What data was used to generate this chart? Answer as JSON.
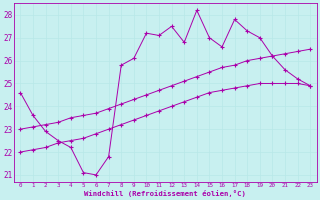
{
  "bg_color": "#c8f0f0",
  "line_color": "#aa00aa",
  "grid_color": "#b8e8e8",
  "xlabel": "Windchill (Refroidissement éolien,°C)",
  "xlabel_color": "#aa00aa",
  "xlim": [
    -0.5,
    23.5
  ],
  "ylim": [
    20.7,
    28.5
  ],
  "yticks": [
    21,
    22,
    23,
    24,
    25,
    26,
    27,
    28
  ],
  "xticks": [
    0,
    1,
    2,
    3,
    4,
    5,
    6,
    7,
    8,
    9,
    10,
    11,
    12,
    13,
    14,
    15,
    16,
    17,
    18,
    19,
    20,
    21,
    22,
    23
  ],
  "line1_x": [
    0,
    1,
    2,
    3,
    4,
    5,
    6,
    7,
    8,
    9,
    10,
    11,
    12,
    13,
    14,
    15,
    16,
    17,
    18,
    19,
    20,
    21,
    22,
    23
  ],
  "line1_y": [
    24.6,
    23.6,
    22.9,
    22.5,
    22.2,
    21.1,
    21.0,
    21.8,
    25.8,
    26.1,
    27.2,
    27.1,
    27.5,
    26.8,
    28.2,
    27.0,
    26.6,
    27.8,
    27.3,
    27.0,
    26.2,
    25.6,
    25.2,
    24.9
  ],
  "line2_x": [
    0,
    1,
    2,
    3,
    4,
    5,
    6,
    7,
    8,
    9,
    10,
    11,
    12,
    13,
    14,
    15,
    16,
    17,
    18,
    19,
    20,
    21,
    22,
    23
  ],
  "line2_y": [
    23.0,
    23.1,
    23.2,
    23.3,
    23.5,
    23.6,
    23.7,
    23.9,
    24.1,
    24.3,
    24.5,
    24.7,
    24.9,
    25.1,
    25.3,
    25.5,
    25.7,
    25.8,
    26.0,
    26.1,
    26.2,
    26.3,
    26.4,
    26.5
  ],
  "line3_x": [
    0,
    1,
    2,
    3,
    4,
    5,
    6,
    7,
    8,
    9,
    10,
    11,
    12,
    13,
    14,
    15,
    16,
    17,
    18,
    19,
    20,
    21,
    22,
    23
  ],
  "line3_y": [
    22.0,
    22.1,
    22.2,
    22.4,
    22.5,
    22.6,
    22.8,
    23.0,
    23.2,
    23.4,
    23.6,
    23.8,
    24.0,
    24.2,
    24.4,
    24.6,
    24.7,
    24.8,
    24.9,
    25.0,
    25.0,
    25.0,
    25.0,
    24.9
  ]
}
